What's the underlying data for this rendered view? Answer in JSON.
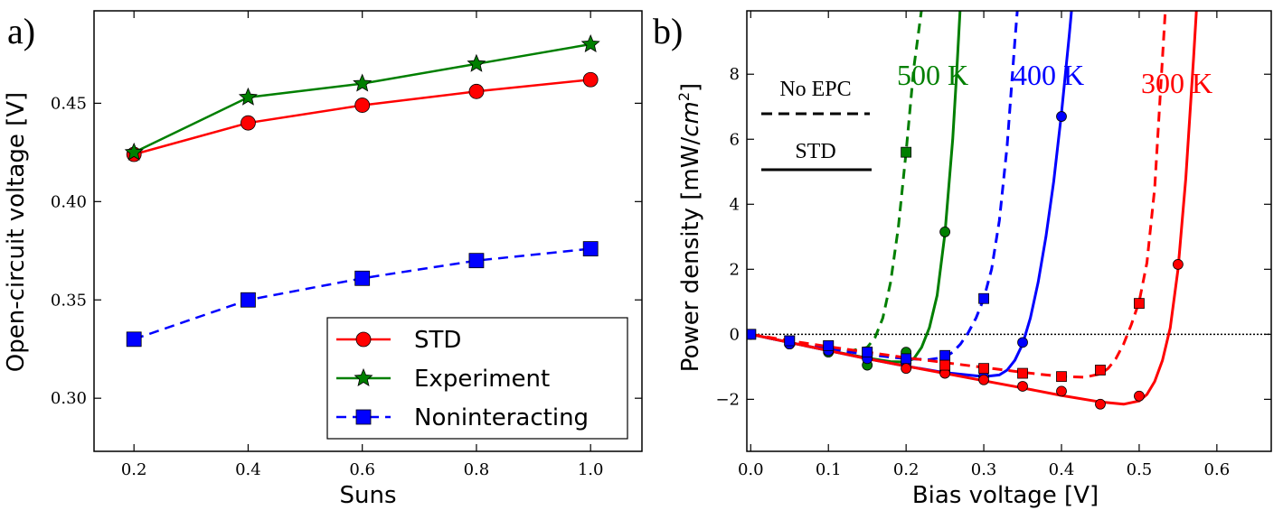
{
  "chart_data": [
    {
      "panel": "a)",
      "type": "line",
      "xlabel": "Suns",
      "ylabel": "Open-circuit voltage [V]",
      "xlim": [
        0.13,
        1.09
      ],
      "ylim": [
        0.273,
        0.497
      ],
      "xticks": [
        "0.2",
        "0.4",
        "0.6",
        "0.8",
        "1.0"
      ],
      "yticks": [
        "0.30",
        "0.35",
        "0.40",
        "0.45"
      ],
      "series": [
        {
          "name": "STD",
          "color": "#ff0000",
          "style": "solid",
          "marker": "circle",
          "x": [
            0.2,
            0.4,
            0.6,
            0.8,
            1.0
          ],
          "y": [
            0.424,
            0.44,
            0.449,
            0.456,
            0.462
          ]
        },
        {
          "name": "Experiment",
          "color": "#007f00",
          "style": "solid",
          "marker": "star",
          "x": [
            0.2,
            0.4,
            0.6,
            0.8,
            1.0
          ],
          "y": [
            0.425,
            0.453,
            0.46,
            0.47,
            0.48
          ]
        },
        {
          "name": "Noninteracting",
          "color": "#0000ff",
          "style": "dashed",
          "marker": "square",
          "x": [
            0.2,
            0.4,
            0.6,
            0.8,
            1.0
          ],
          "y": [
            0.33,
            0.35,
            0.361,
            0.37,
            0.376
          ]
        }
      ],
      "legend_position": "bottom-right"
    },
    {
      "panel": "b)",
      "type": "line",
      "xlabel": "Bias voltage [V]",
      "ylabel": "Power density [mW/cm²]",
      "ylabel_prefix": "Power density [mW/",
      "ylabel_unit": "cm",
      "ylabel_exp": "2",
      "ylabel_suffix": "]",
      "xlim": [
        -0.005,
        0.67
      ],
      "ylim": [
        -3.6,
        9.95
      ],
      "xticks": [
        "0.0",
        "0.1",
        "0.2",
        "0.3",
        "0.4",
        "0.5",
        "0.6"
      ],
      "yticks": [
        "−2",
        "0",
        "2",
        "4",
        "6",
        "8"
      ],
      "zero_line": true,
      "legend_items": [
        {
          "label": "No EPC",
          "style": "dashed"
        },
        {
          "label": "STD",
          "style": "solid"
        }
      ],
      "annotations": [
        {
          "text": "500 K",
          "color": "#007f00"
        },
        {
          "text": "400 K",
          "color": "#0000ff"
        },
        {
          "text": "300 K",
          "color": "#ff0000"
        }
      ],
      "series": [
        {
          "name": "500 K STD",
          "color": "#007f00",
          "style": "solid",
          "marker": "circle",
          "points_x": [
            0.0,
            0.05,
            0.1,
            0.15,
            0.2,
            0.25
          ],
          "points_y": [
            0.0,
            -0.3,
            -0.55,
            -0.95,
            -0.55,
            3.15
          ],
          "curve_x": [
            0,
            0.05,
            0.1,
            0.15,
            0.18,
            0.2,
            0.21,
            0.22,
            0.23,
            0.24,
            0.25,
            0.26,
            0.265,
            0.27
          ],
          "curve_y": [
            0,
            -0.25,
            -0.5,
            -0.73,
            -0.84,
            -0.85,
            -0.75,
            -0.4,
            0.2,
            1.2,
            3.1,
            6.0,
            8.0,
            10.2
          ]
        },
        {
          "name": "500 K No EPC",
          "color": "#007f00",
          "style": "dashed",
          "marker": "square",
          "points_x": [
            0.0,
            0.05,
            0.1,
            0.15,
            0.2
          ],
          "points_y": [
            0.0,
            -0.2,
            -0.35,
            -0.55,
            5.6
          ],
          "curve_x": [
            0,
            0.05,
            0.1,
            0.13,
            0.15,
            0.16,
            0.17,
            0.18,
            0.19,
            0.2,
            0.21,
            0.22,
            0.225
          ],
          "curve_y": [
            0,
            -0.25,
            -0.45,
            -0.5,
            -0.4,
            -0.1,
            0.5,
            1.6,
            3.3,
            5.6,
            8.2,
            10.0,
            10.5
          ]
        },
        {
          "name": "400 K STD",
          "color": "#0000ff",
          "style": "solid",
          "marker": "circle",
          "points_x": [
            0.0,
            0.05,
            0.1,
            0.15,
            0.2,
            0.25,
            0.3,
            0.35,
            0.4
          ],
          "points_y": [
            0.0,
            -0.3,
            -0.5,
            -0.75,
            -0.9,
            -1.15,
            -1.3,
            -0.25,
            6.7
          ],
          "curve_x": [
            0,
            0.05,
            0.1,
            0.15,
            0.2,
            0.25,
            0.3,
            0.32,
            0.33,
            0.34,
            0.35,
            0.36,
            0.37,
            0.38,
            0.39,
            0.4,
            0.41,
            0.415
          ],
          "curve_y": [
            0,
            -0.25,
            -0.5,
            -0.75,
            -0.98,
            -1.18,
            -1.3,
            -1.25,
            -1.1,
            -0.8,
            -0.3,
            0.5,
            1.6,
            3.0,
            4.7,
            6.8,
            9.2,
            10.5
          ]
        },
        {
          "name": "400 K No EPC",
          "color": "#0000ff",
          "style": "dashed",
          "marker": "square",
          "points_x": [
            0.0,
            0.05,
            0.1,
            0.15,
            0.2,
            0.25,
            0.3
          ],
          "points_y": [
            0.0,
            -0.2,
            -0.35,
            -0.55,
            -0.75,
            -0.65,
            1.1
          ],
          "curve_x": [
            0,
            0.05,
            0.1,
            0.15,
            0.2,
            0.23,
            0.25,
            0.26,
            0.27,
            0.28,
            0.29,
            0.3,
            0.31,
            0.32,
            0.33,
            0.34,
            0.345
          ],
          "curve_y": [
            0,
            -0.25,
            -0.45,
            -0.62,
            -0.75,
            -0.78,
            -0.7,
            -0.55,
            -0.3,
            0.05,
            0.5,
            1.1,
            2.0,
            3.5,
            5.8,
            9.0,
            10.5
          ]
        },
        {
          "name": "300 K STD",
          "color": "#ff0000",
          "style": "solid",
          "marker": "circle",
          "points_x": [
            0.2,
            0.25,
            0.3,
            0.35,
            0.4,
            0.45,
            0.5,
            0.55
          ],
          "points_y": [
            -1.05,
            -1.2,
            -1.4,
            -1.6,
            -1.75,
            -2.15,
            -1.9,
            2.15
          ],
          "curve_x": [
            0,
            0.05,
            0.1,
            0.15,
            0.2,
            0.25,
            0.3,
            0.35,
            0.4,
            0.45,
            0.48,
            0.5,
            0.51,
            0.52,
            0.53,
            0.54,
            0.55,
            0.56,
            0.57,
            0.575
          ],
          "curve_y": [
            0,
            -0.25,
            -0.5,
            -0.75,
            -0.98,
            -1.2,
            -1.43,
            -1.65,
            -1.88,
            -2.08,
            -2.15,
            -2.05,
            -1.85,
            -1.45,
            -0.8,
            0.2,
            2.0,
            4.8,
            8.5,
            10.5
          ]
        },
        {
          "name": "300 K No EPC",
          "color": "#ff0000",
          "style": "dashed",
          "marker": "square",
          "points_x": [
            0.25,
            0.3,
            0.35,
            0.4,
            0.45,
            0.5
          ],
          "points_y": [
            -0.95,
            -1.05,
            -1.2,
            -1.3,
            -1.1,
            0.95
          ],
          "curve_x": [
            0,
            0.05,
            0.1,
            0.15,
            0.2,
            0.25,
            0.3,
            0.35,
            0.4,
            0.43,
            0.45,
            0.46,
            0.47,
            0.48,
            0.49,
            0.5,
            0.51,
            0.52,
            0.53,
            0.535
          ],
          "curve_y": [
            0,
            -0.2,
            -0.38,
            -0.55,
            -0.72,
            -0.87,
            -1.02,
            -1.17,
            -1.3,
            -1.32,
            -1.22,
            -1.05,
            -0.75,
            -0.3,
            0.3,
            1.0,
            2.2,
            4.5,
            8.5,
            10.5
          ]
        }
      ]
    }
  ]
}
